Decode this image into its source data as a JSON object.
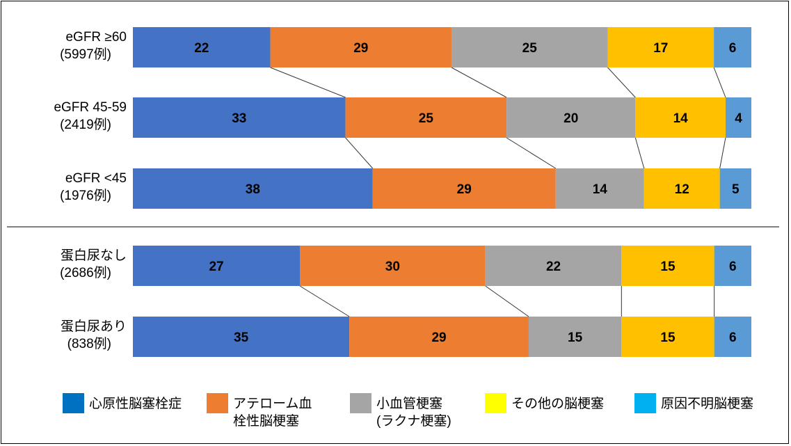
{
  "chart_data": {
    "type": "bar",
    "stacked": true,
    "orientation": "horizontal",
    "unit": "percent",
    "groups": [
      {
        "name": "eGFR",
        "rows": [
          {
            "label_line1": "eGFR ≥60",
            "label_line2": "(5997例)",
            "values": [
              22,
              29,
              25,
              17,
              6
            ]
          },
          {
            "label_line1": "eGFR 45-59",
            "label_line2": "(2419例)",
            "values": [
              33,
              25,
              20,
              14,
              4
            ]
          },
          {
            "label_line1": "eGFR <45",
            "label_line2": "(1976例)",
            "values": [
              38,
              29,
              14,
              12,
              5
            ]
          }
        ]
      },
      {
        "name": "proteinuria",
        "rows": [
          {
            "label_line1": "蛋白尿なし",
            "label_line2": "(2686例)",
            "values": [
              27,
              30,
              22,
              15,
              6
            ]
          },
          {
            "label_line1": "蛋白尿あり",
            "label_line2": "(838例)",
            "values": [
              35,
              29,
              15,
              15,
              6
            ]
          }
        ]
      }
    ],
    "series": [
      {
        "name_lines": [
          "心原性脳塞栓症"
        ],
        "bar_color": "#4472C4",
        "legend_color": "#0070C0"
      },
      {
        "name_lines": [
          "アテローム血",
          "栓性脳梗塞"
        ],
        "bar_color": "#ED7D31",
        "legend_color": "#ED7D31"
      },
      {
        "name_lines": [
          "小血管梗塞",
          "(ラクナ梗塞)"
        ],
        "bar_color": "#A5A5A5",
        "legend_color": "#A5A5A5"
      },
      {
        "name_lines": [
          "その他の脳梗塞"
        ],
        "bar_color": "#FFC000",
        "legend_color": "#FFFF00"
      },
      {
        "name_lines": [
          "原因不明脳梗塞"
        ],
        "bar_color": "#5B9BD5",
        "legend_color": "#00B0F0"
      }
    ],
    "value_labels": true,
    "connector_lines": true,
    "legend_position": "bottom",
    "grid": false,
    "xlim": [
      0,
      100
    ]
  }
}
